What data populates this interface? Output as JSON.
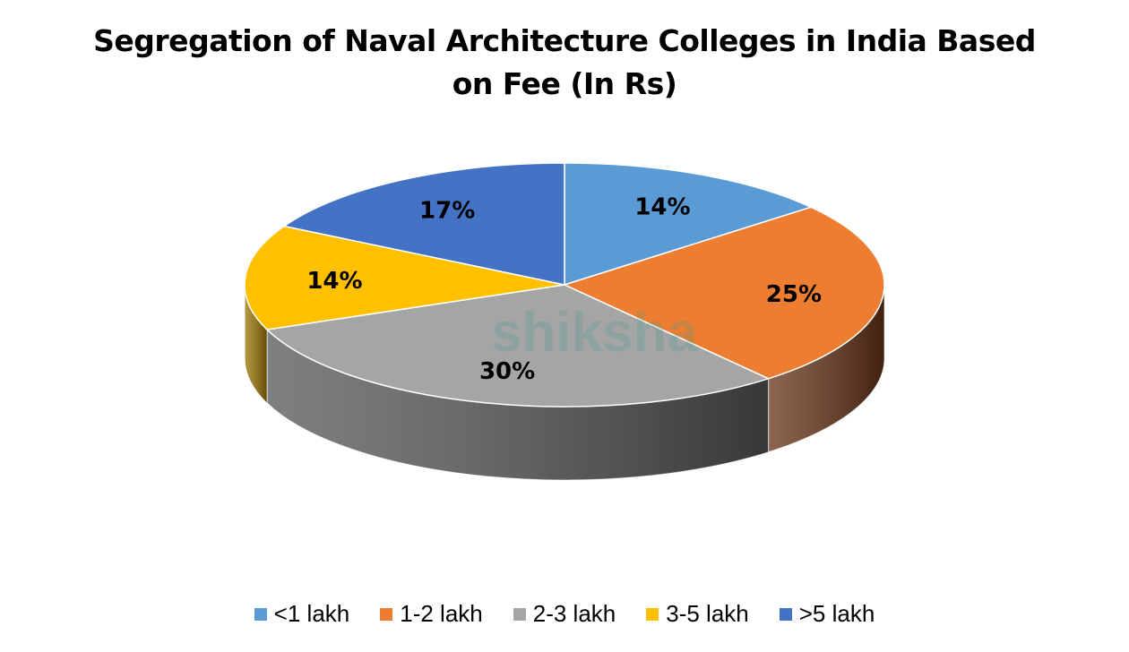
{
  "chart_data": {
    "type": "pie",
    "style": "3d",
    "title": "Segregation of Naval Architecture Colleges in India Based on Fee (In Rs)",
    "title_lines": [
      "Segregation of Naval Architecture Colleges in India Based",
      "on Fee (In Rs)"
    ],
    "categories": [
      "<1 lakh",
      "1-2 lakh",
      "2-3 lakh",
      "3-5 lakh",
      ">5 lakh"
    ],
    "values": [
      14,
      25,
      30,
      14,
      17
    ],
    "data_labels": [
      "14%",
      "25%",
      "30%",
      "14%",
      "17%"
    ],
    "colors": [
      "#5b9bd5",
      "#ed7d31",
      "#a5a5a5",
      "#ffc000",
      "#4472c4"
    ],
    "side_colors": [
      "#2e5a85",
      "#643114",
      "#555555",
      "#9a7400",
      "#23407a"
    ],
    "legend_position": "bottom",
    "watermark": "shiksha"
  }
}
